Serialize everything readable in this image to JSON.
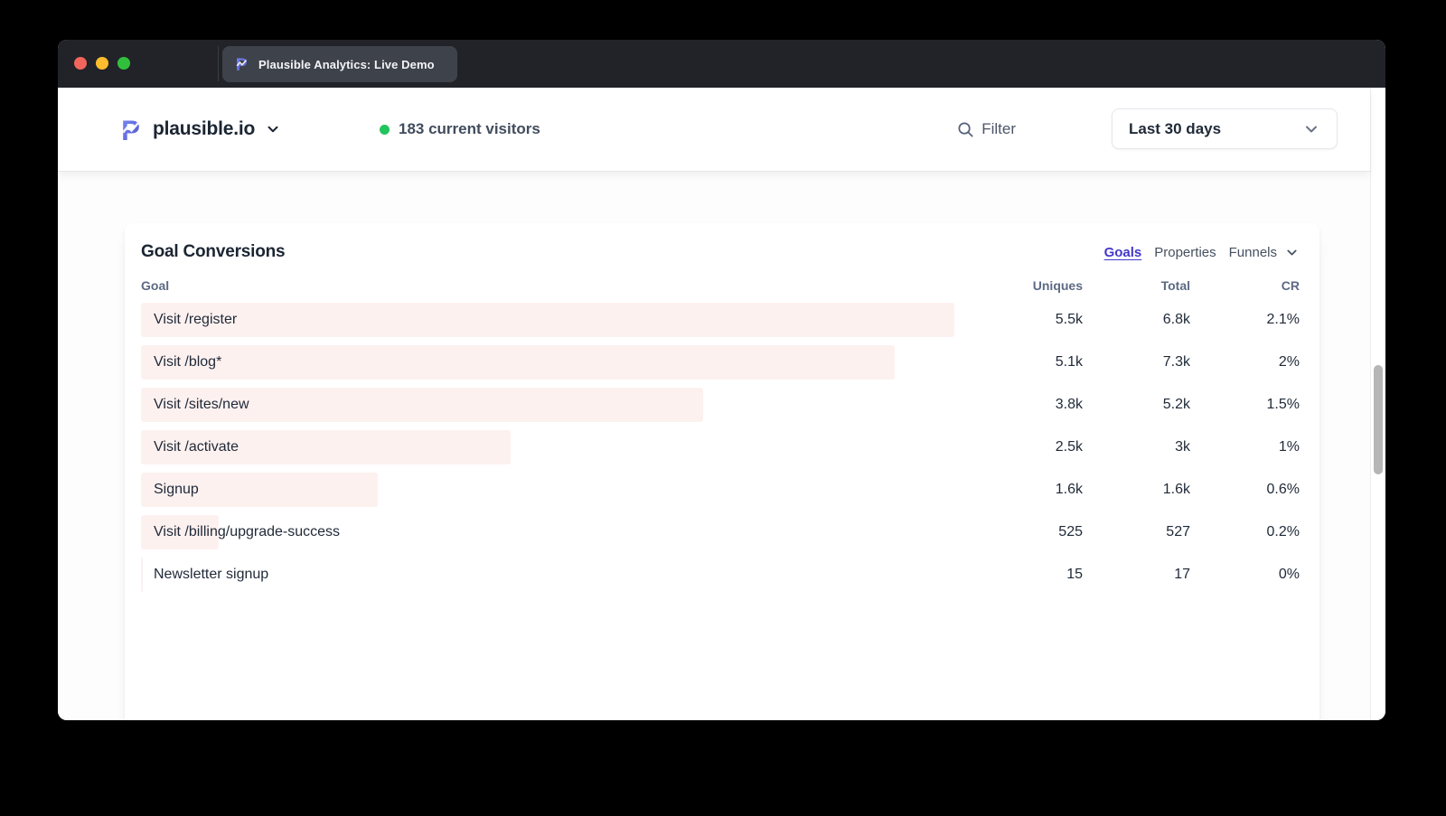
{
  "window": {
    "tab": {
      "title": "Plausible Analytics: Live Demo"
    }
  },
  "header": {
    "site_name": "plausible.io",
    "visitors": "183 current visitors",
    "filter_label": "Filter",
    "date_range": "Last 30 days"
  },
  "report": {
    "title": "Goal Conversions",
    "tabs": [
      {
        "label": "Goals",
        "active": true
      },
      {
        "label": "Properties",
        "active": false
      },
      {
        "label": "Funnels",
        "active": false
      }
    ],
    "columns": {
      "goal": "Goal",
      "uniques": "Uniques",
      "total": "Total",
      "cr": "CR"
    },
    "rows": [
      {
        "goal": "Visit /register",
        "uniques": "5.5k",
        "uniques_value": 5500,
        "total": "6.8k",
        "cr": "2.1%"
      },
      {
        "goal": "Visit /blog*",
        "uniques": "5.1k",
        "uniques_value": 5100,
        "total": "7.3k",
        "cr": "2%"
      },
      {
        "goal": "Visit /sites/new",
        "uniques": "3.8k",
        "uniques_value": 3800,
        "total": "5.2k",
        "cr": "1.5%"
      },
      {
        "goal": "Visit /activate",
        "uniques": "2.5k",
        "uniques_value": 2500,
        "total": "3k",
        "cr": "1%"
      },
      {
        "goal": "Signup",
        "uniques": "1.6k",
        "uniques_value": 1600,
        "total": "1.6k",
        "cr": "0.6%"
      },
      {
        "goal": "Visit /billing/upgrade-success",
        "uniques": "525",
        "uniques_value": 525,
        "total": "527",
        "cr": "0.2%"
      },
      {
        "goal": "Newsletter signup",
        "uniques": "15",
        "uniques_value": 15,
        "total": "17",
        "cr": "0%"
      }
    ]
  },
  "colors": {
    "accent_indigo": "#4338ca",
    "bar_pink": "#fdf1f0",
    "live_dot_green": "#21c45d",
    "tabbar_bg": "#212329",
    "text_dark": "#1f2937"
  }
}
